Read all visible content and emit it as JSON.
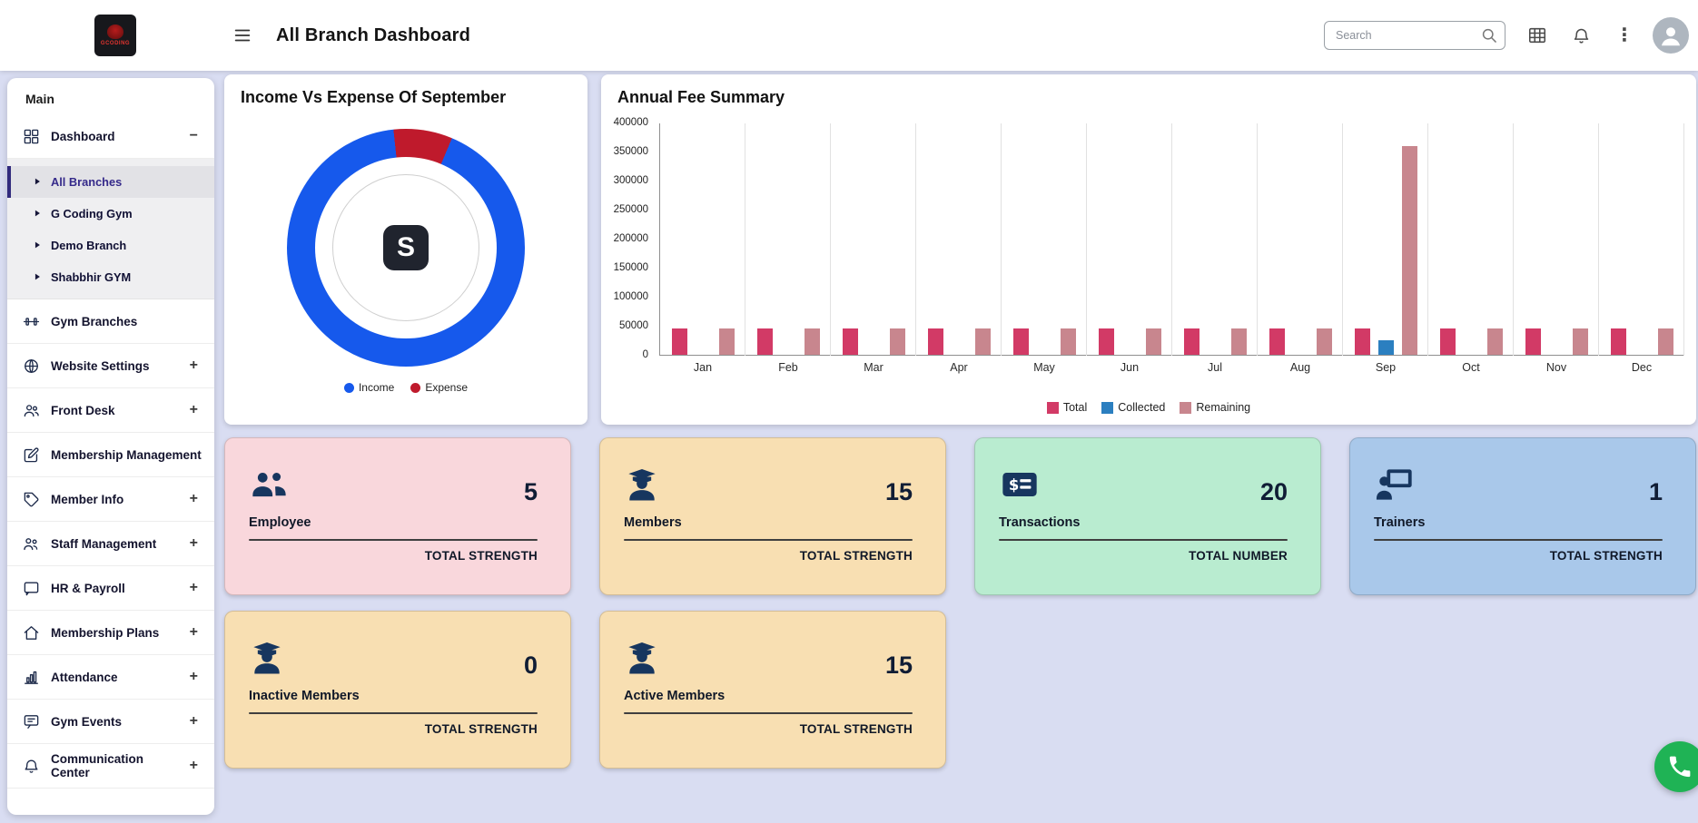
{
  "header": {
    "title": "All Branch Dashboard",
    "logo_text": "GCODING",
    "search_placeholder": "Search"
  },
  "sidebar": {
    "section_label": "Main",
    "items": [
      {
        "label": "Dashboard",
        "icon": "grid",
        "expand": "minus"
      },
      {
        "label": "All Branches",
        "type": "sub",
        "active": true
      },
      {
        "label": "G Coding Gym",
        "type": "sub"
      },
      {
        "label": "Demo Branch",
        "type": "sub"
      },
      {
        "label": "Shabbhir GYM",
        "type": "sub"
      },
      {
        "label": "Gym Branches",
        "icon": "bench"
      },
      {
        "label": "Website Settings",
        "icon": "globe",
        "expand": "plus"
      },
      {
        "label": "Front Desk",
        "icon": "users",
        "expand": "plus"
      },
      {
        "label": "Membership Management",
        "icon": "edit"
      },
      {
        "label": "Member Info",
        "icon": "tag",
        "expand": "plus"
      },
      {
        "label": "Staff Management",
        "icon": "users2",
        "expand": "plus"
      },
      {
        "label": "HR & Payroll",
        "icon": "chat",
        "expand": "plus"
      },
      {
        "label": "Membership Plans",
        "icon": "home",
        "expand": "plus"
      },
      {
        "label": "Attendance",
        "icon": "chart",
        "expand": "plus"
      },
      {
        "label": "Gym Events",
        "icon": "message",
        "expand": "plus"
      },
      {
        "label": "Communication Center",
        "icon": "bell",
        "expand": "plus"
      }
    ]
  },
  "donut_center_text": "S",
  "chart_data": [
    {
      "type": "pie",
      "donut": true,
      "title": "Income Vs Expense Of September",
      "labels": [
        "Income",
        "Expense"
      ],
      "values": [
        92,
        8
      ],
      "colors": [
        "#1659ec",
        "#bf1a2c"
      ],
      "legend_position": "bottom"
    },
    {
      "type": "bar",
      "title": "Annual Fee Summary",
      "categories": [
        "Jan",
        "Feb",
        "Mar",
        "Apr",
        "May",
        "Jun",
        "Jul",
        "Aug",
        "Sep",
        "Oct",
        "Nov",
        "Dec"
      ],
      "series": [
        {
          "name": "Total",
          "color": "#d23a66",
          "values": [
            45000,
            45000,
            45000,
            45000,
            45000,
            45000,
            45000,
            45000,
            45000,
            45000,
            45000,
            45000
          ]
        },
        {
          "name": "Collected",
          "color": "#2b7fc0",
          "values": [
            0,
            0,
            0,
            0,
            0,
            0,
            0,
            0,
            25000,
            0,
            0,
            0
          ]
        },
        {
          "name": "Remaining",
          "color": "#c8868e",
          "values": [
            45000,
            45000,
            45000,
            45000,
            45000,
            45000,
            45000,
            45000,
            360000,
            45000,
            45000,
            45000
          ]
        }
      ],
      "ylim": [
        0,
        400000
      ],
      "ytick_step": 50000,
      "grid": "vertical",
      "legend_position": "bottom"
    }
  ],
  "stat_cards": [
    {
      "label": "Employee",
      "value": "5",
      "footer": "TOTAL STRENGTH",
      "bg": "#f9d7dc",
      "icon": "people"
    },
    {
      "label": "Members",
      "value": "15",
      "footer": "TOTAL STRENGTH",
      "bg": "#f8dfb2",
      "icon": "graduate"
    },
    {
      "label": "Transactions",
      "value": "20",
      "footer": "TOTAL NUMBER",
      "bg": "#b9ecd0",
      "icon": "dollar"
    },
    {
      "label": "Trainers",
      "value": "1",
      "footer": "TOTAL STRENGTH",
      "bg": "#a9c8ea",
      "icon": "trainer"
    },
    {
      "label": "Inactive Members",
      "value": "0",
      "footer": "TOTAL STRENGTH",
      "bg": "#f8dfb2",
      "icon": "graduate"
    },
    {
      "label": "Active Members",
      "value": "15",
      "footer": "TOTAL STRENGTH",
      "bg": "#f8dfb2",
      "icon": "graduate"
    }
  ]
}
